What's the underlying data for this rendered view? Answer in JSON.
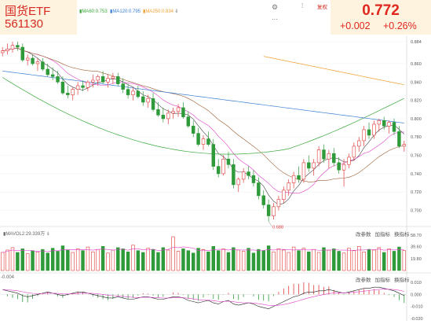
{
  "quote": {
    "name": "国货ETF",
    "code": "561130",
    "last": "0.772",
    "change": "+0.002",
    "change_pct": "+0.26%"
  },
  "ma_legend": [
    {
      "label": "MA60:0.753",
      "color": "#3b7fd1"
    },
    {
      "label": "MA120:0.795",
      "color": "#3b7fd1"
    },
    {
      "label": "MA250:0.834",
      "color": "#f0a030"
    }
  ],
  "toolbar": {
    "settings_icon": "gear-icon",
    "more_icon": "dots-icon",
    "record": "复权"
  },
  "volume_legend": "MAVOL2:29.339万",
  "volume_tools": [
    "改参数",
    "加指标",
    "换指标"
  ],
  "macd_legend": "-0.004",
  "macd_tools": [
    "改参数",
    "加指标",
    "换指标"
  ],
  "colors": {
    "up": "#e03a3a",
    "down": "#2e9a3a",
    "ma5": "#444444",
    "ma10": "#e040c8",
    "ma20": "#9c5a30",
    "ma60": "#3aa83a",
    "ma120": "#3b7fd1",
    "ma250": "#f0a030",
    "dif": "#222222",
    "dea": "#e040c8",
    "quote_bg": "#fdf3df"
  },
  "chart_data": {
    "type": "candlestick",
    "price_axis": {
      "ticks": [
        "0.884",
        "0.860",
        "0.840",
        "0.820",
        "0.800",
        "0.780",
        "0.760",
        "0.740",
        "0.720",
        "0.700"
      ],
      "range": [
        0.685,
        0.89
      ]
    },
    "volume_axis": {
      "ticks": [
        "58.70",
        "39.60",
        "19.80"
      ]
    },
    "macd_axis": {
      "ticks": [
        "0.010",
        "0.000",
        "-0.010",
        "-0.020"
      ],
      "range": [
        -0.022,
        0.012
      ]
    },
    "low_annotation": "0.688",
    "candles": [
      [
        0.872,
        0.878,
        0.868,
        0.874
      ],
      [
        0.874,
        0.882,
        0.87,
        0.876
      ],
      [
        0.876,
        0.884,
        0.872,
        0.88
      ],
      [
        0.88,
        0.884,
        0.874,
        0.878
      ],
      [
        0.878,
        0.882,
        0.862,
        0.864
      ],
      [
        0.864,
        0.87,
        0.858,
        0.866
      ],
      [
        0.866,
        0.87,
        0.858,
        0.86
      ],
      [
        0.86,
        0.866,
        0.852,
        0.862
      ],
      [
        0.862,
        0.866,
        0.852,
        0.854
      ],
      [
        0.854,
        0.86,
        0.846,
        0.848
      ],
      [
        0.848,
        0.856,
        0.842,
        0.846
      ],
      [
        0.846,
        0.852,
        0.838,
        0.84
      ],
      [
        0.84,
        0.846,
        0.826,
        0.828
      ],
      [
        0.828,
        0.836,
        0.822,
        0.826
      ],
      [
        0.826,
        0.834,
        0.82,
        0.832
      ],
      [
        0.832,
        0.84,
        0.826,
        0.836
      ],
      [
        0.836,
        0.842,
        0.83,
        0.834
      ],
      [
        0.834,
        0.842,
        0.83,
        0.84
      ],
      [
        0.84,
        0.848,
        0.834,
        0.842
      ],
      [
        0.842,
        0.848,
        0.836,
        0.846
      ],
      [
        0.846,
        0.852,
        0.838,
        0.84
      ],
      [
        0.84,
        0.848,
        0.834,
        0.844
      ],
      [
        0.844,
        0.85,
        0.838,
        0.846
      ],
      [
        0.846,
        0.85,
        0.836,
        0.838
      ],
      [
        0.838,
        0.844,
        0.828,
        0.832
      ],
      [
        0.832,
        0.838,
        0.822,
        0.826
      ],
      [
        0.826,
        0.834,
        0.82,
        0.83
      ],
      [
        0.83,
        0.836,
        0.822,
        0.824
      ],
      [
        0.824,
        0.83,
        0.814,
        0.818
      ],
      [
        0.818,
        0.826,
        0.812,
        0.822
      ],
      [
        0.822,
        0.828,
        0.808,
        0.81
      ],
      [
        0.81,
        0.818,
        0.802,
        0.804
      ],
      [
        0.804,
        0.812,
        0.796,
        0.8
      ],
      [
        0.8,
        0.81,
        0.794,
        0.806
      ],
      [
        0.806,
        0.812,
        0.8,
        0.808
      ],
      [
        0.808,
        0.816,
        0.802,
        0.812
      ],
      [
        0.812,
        0.818,
        0.8,
        0.802
      ],
      [
        0.802,
        0.808,
        0.79,
        0.792
      ],
      [
        0.792,
        0.798,
        0.78,
        0.784
      ],
      [
        0.784,
        0.79,
        0.77,
        0.772
      ],
      [
        0.772,
        0.782,
        0.766,
        0.778
      ],
      [
        0.778,
        0.786,
        0.77,
        0.772
      ],
      [
        0.772,
        0.778,
        0.744,
        0.748
      ],
      [
        0.748,
        0.756,
        0.736,
        0.74
      ],
      [
        0.74,
        0.76,
        0.738,
        0.756
      ],
      [
        0.756,
        0.764,
        0.746,
        0.75
      ],
      [
        0.75,
        0.756,
        0.724,
        0.728
      ],
      [
        0.728,
        0.736,
        0.72,
        0.734
      ],
      [
        0.734,
        0.746,
        0.73,
        0.742
      ],
      [
        0.742,
        0.748,
        0.734,
        0.738
      ],
      [
        0.738,
        0.744,
        0.726,
        0.73
      ],
      [
        0.73,
        0.736,
        0.712,
        0.716
      ],
      [
        0.716,
        0.722,
        0.702,
        0.706
      ],
      [
        0.706,
        0.712,
        0.688,
        0.694
      ],
      [
        0.694,
        0.708,
        0.69,
        0.704
      ],
      [
        0.704,
        0.716,
        0.7,
        0.712
      ],
      [
        0.712,
        0.726,
        0.708,
        0.722
      ],
      [
        0.722,
        0.734,
        0.716,
        0.73
      ],
      [
        0.73,
        0.742,
        0.724,
        0.738
      ],
      [
        0.738,
        0.748,
        0.73,
        0.734
      ],
      [
        0.734,
        0.756,
        0.73,
        0.752
      ],
      [
        0.752,
        0.76,
        0.742,
        0.746
      ],
      [
        0.746,
        0.756,
        0.738,
        0.752
      ],
      [
        0.752,
        0.77,
        0.748,
        0.766
      ],
      [
        0.766,
        0.772,
        0.752,
        0.756
      ],
      [
        0.756,
        0.766,
        0.746,
        0.762
      ],
      [
        0.762,
        0.768,
        0.748,
        0.752
      ],
      [
        0.752,
        0.758,
        0.74,
        0.744
      ],
      [
        0.744,
        0.756,
        0.726,
        0.75
      ],
      [
        0.75,
        0.762,
        0.746,
        0.758
      ],
      [
        0.758,
        0.774,
        0.754,
        0.77
      ],
      [
        0.77,
        0.78,
        0.764,
        0.776
      ],
      [
        0.776,
        0.792,
        0.77,
        0.788
      ],
      [
        0.788,
        0.796,
        0.778,
        0.782
      ],
      [
        0.782,
        0.798,
        0.778,
        0.794
      ],
      [
        0.794,
        0.8,
        0.786,
        0.798
      ],
      [
        0.798,
        0.802,
        0.788,
        0.792
      ],
      [
        0.792,
        0.798,
        0.784,
        0.796
      ],
      [
        0.796,
        0.8,
        0.782,
        0.786
      ],
      [
        0.786,
        0.792,
        0.768,
        0.77
      ],
      [
        0.77,
        0.776,
        0.764,
        0.772
      ]
    ],
    "volume": [
      30,
      34,
      38,
      30,
      36,
      28,
      33,
      31,
      35,
      29,
      37,
      32,
      41,
      34,
      30,
      36,
      33,
      39,
      31,
      35,
      40,
      29,
      34,
      38,
      36,
      31,
      42,
      33,
      30,
      37,
      35,
      30,
      38,
      34,
      56,
      32,
      36,
      33,
      29,
      37,
      35,
      31,
      40,
      33,
      36,
      30,
      38,
      34,
      32,
      37,
      29,
      35,
      33,
      41,
      31,
      36,
      34,
      30,
      39,
      33,
      37,
      31,
      35,
      30,
      38,
      34,
      36,
      32,
      29,
      37,
      33,
      40,
      31,
      35,
      34,
      38,
      30,
      36,
      32,
      39,
      33
    ],
    "macd": [
      0.004,
      0.003,
      0.002,
      0.001,
      -0.001,
      -0.002,
      -0.001,
      0.0,
      0.001,
      0.002,
      0.001,
      0.0,
      -0.001,
      0.0,
      0.001,
      0.002,
      0.002,
      0.001,
      0.0,
      -0.001,
      -0.002,
      -0.003,
      -0.003,
      -0.002,
      -0.003,
      -0.004,
      -0.004,
      -0.003,
      -0.002,
      -0.002,
      -0.003,
      -0.004,
      -0.004,
      -0.003,
      -0.002,
      -0.002,
      -0.003,
      -0.005,
      -0.006,
      -0.007,
      -0.006,
      -0.005,
      -0.007,
      -0.008,
      -0.006,
      -0.005,
      -0.008,
      -0.009,
      -0.008,
      -0.007,
      -0.008,
      -0.01,
      -0.011,
      -0.012,
      -0.01,
      -0.008,
      -0.006,
      -0.004,
      -0.002,
      -0.001,
      0.001,
      0.002,
      0.002,
      0.003,
      0.003,
      0.004,
      0.003,
      0.002,
      0.001,
      0.002,
      0.003,
      0.004,
      0.005,
      0.005,
      0.006,
      0.006,
      0.005,
      0.004,
      0.003,
      0.001,
      -0.001
    ]
  }
}
